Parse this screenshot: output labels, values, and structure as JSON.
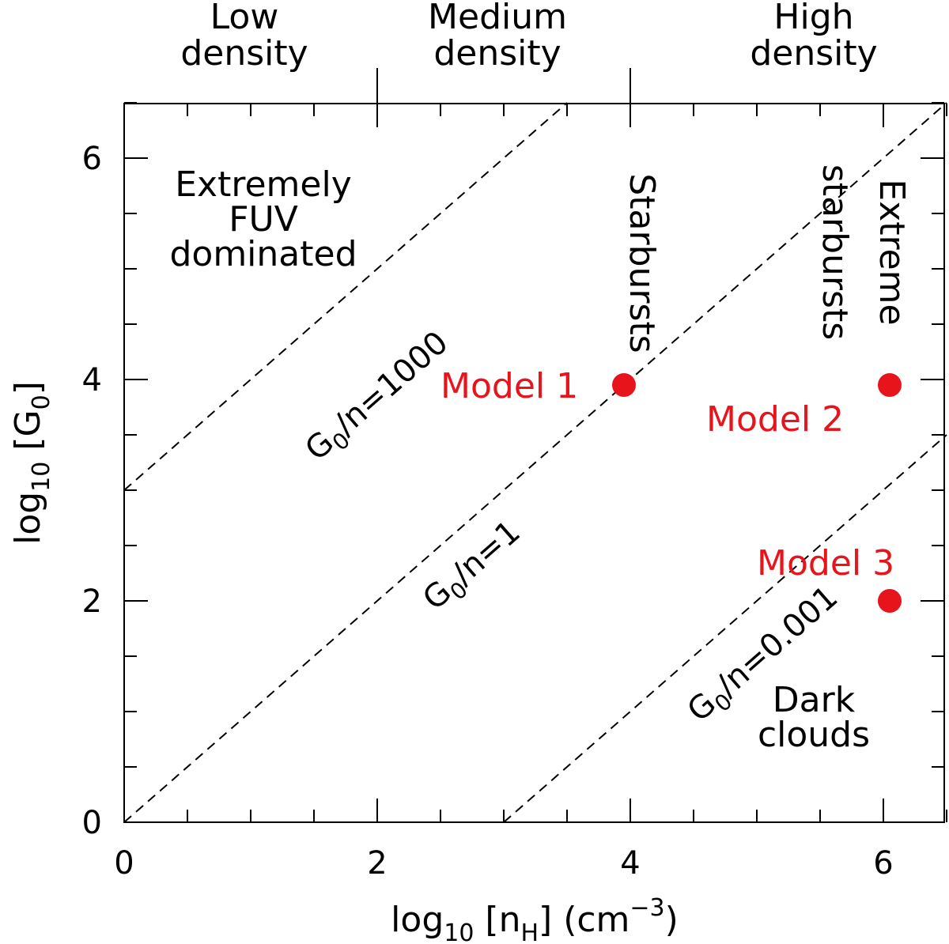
{
  "chart_data": {
    "type": "scatter",
    "xlim": [
      0,
      6.5
    ],
    "ylim": [
      0,
      6.5
    ],
    "x_ticks": [
      "0",
      "2",
      "4",
      "6"
    ],
    "y_ticks": [
      "0",
      "2",
      "4",
      "6"
    ],
    "xlabel": {
      "base": "log",
      "sub": "10",
      "mid": " [n",
      "sub2": "H",
      "tail": "] (cm",
      "sup": "−3",
      "end": ")"
    },
    "ylabel": {
      "base": "log",
      "sub": "10",
      "mid": " [G",
      "sub2": "0",
      "end": "]"
    },
    "density_regions": [
      {
        "lines": [
          "Low",
          "density"
        ],
        "x_center": 1.0
      },
      {
        "lines": [
          "Medium",
          "density"
        ],
        "x_center": 3.0
      },
      {
        "lines": [
          "High",
          "density"
        ],
        "x_center": 5.5
      }
    ],
    "density_boundaries": [
      2,
      4
    ],
    "regime_lines": [
      {
        "label_main": "G",
        "label_sub": "0",
        "label_tail": "/n=1000",
        "log_ratio": 3,
        "label_at": [
          2.05,
          3.78
        ]
      },
      {
        "label_main": "G",
        "label_sub": "0",
        "label_tail": "/n=1",
        "log_ratio": 0,
        "label_at": [
          2.8,
          2.25
        ]
      },
      {
        "label_main": "G",
        "label_sub": "0",
        "label_tail": "/n=0.001",
        "log_ratio": -3,
        "label_at": [
          5.1,
          1.45
        ]
      }
    ],
    "regions": [
      {
        "lines": [
          "Extremely",
          "FUV",
          "dominated"
        ],
        "at": [
          1.1,
          5.45
        ],
        "rotate": 0
      },
      {
        "lines": [
          "Starbursts"
        ],
        "at": [
          4.0,
          5.05
        ],
        "rotate": 90
      },
      {
        "lines": [
          "Extreme",
          "starbursts"
        ],
        "at": [
          5.75,
          5.15
        ],
        "rotate": 90
      },
      {
        "lines": [
          "Dark",
          "clouds"
        ],
        "at": [
          5.45,
          0.95
        ],
        "rotate": 0
      }
    ],
    "models": [
      {
        "name": "Model 1",
        "x": 3.95,
        "y": 3.95,
        "label_at": [
          2.5,
          3.95
        ],
        "label_anchor": "start"
      },
      {
        "name": "Model 2",
        "x": 6.05,
        "y": 3.95,
        "label_at": [
          4.6,
          3.65
        ],
        "label_anchor": "start"
      },
      {
        "name": "Model 3",
        "x": 6.05,
        "y": 2.0,
        "label_at": [
          5.0,
          2.35
        ],
        "label_anchor": "start"
      }
    ],
    "model_color": "#e8141c",
    "grid": false
  }
}
